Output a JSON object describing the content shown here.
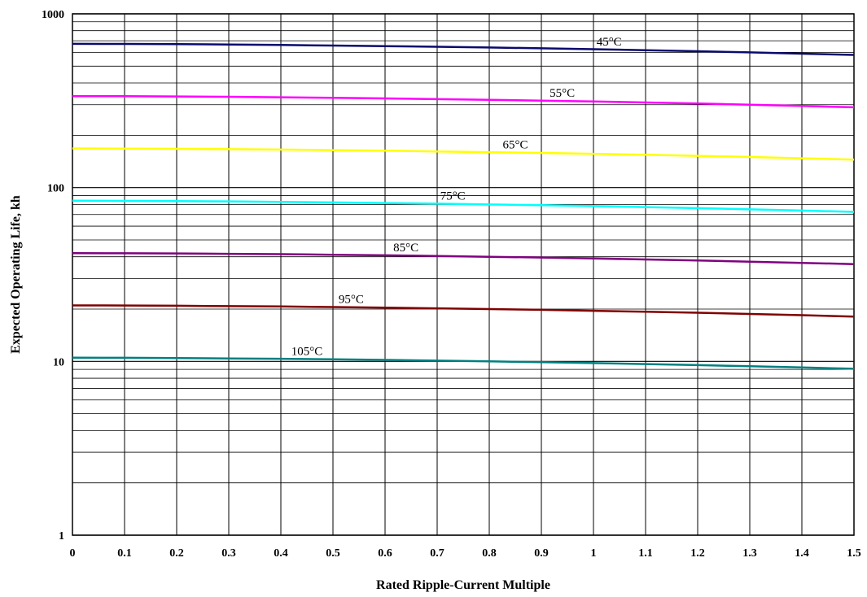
{
  "chart_data": {
    "type": "line",
    "title": "",
    "xlabel": "Rated Ripple-Current Multiple",
    "ylabel": "Expected Operating Life, kh",
    "xlim": [
      0,
      1.5
    ],
    "ylim": [
      1,
      1000
    ],
    "yscale": "log",
    "grid": true,
    "x_ticks": [
      "0",
      "0.1",
      "0.2",
      "0.3",
      "0.4",
      "0.5",
      "0.6",
      "0.7",
      "0.8",
      "0.9",
      "1",
      "1.1",
      "1.2",
      "1.3",
      "1.4",
      "1.5"
    ],
    "y_ticks": [
      {
        "value": 1,
        "label": "1"
      },
      {
        "value": 10,
        "label": "10"
      },
      {
        "value": 100,
        "label": "100"
      },
      {
        "value": 1000,
        "label": "1000"
      }
    ],
    "x": [
      0,
      0.1,
      0.2,
      0.3,
      0.4,
      0.5,
      0.6,
      0.7,
      0.8,
      0.9,
      1.0,
      1.1,
      1.2,
      1.3,
      1.4,
      1.5
    ],
    "series": [
      {
        "name": "45°C",
        "color": "#0a0a6e",
        "label_x": 1.03,
        "values": [
          672,
          671,
          669,
          666,
          662,
          657,
          652,
          646,
          640,
          633,
          626,
          618,
          609,
          600,
          590,
          580
        ]
      },
      {
        "name": "55°C",
        "color": "#ff00ff",
        "label_x": 0.94,
        "values": [
          336,
          335.5,
          334.5,
          333,
          331,
          328.5,
          326,
          323,
          320,
          316.5,
          313,
          309,
          304.5,
          300,
          295,
          290
        ]
      },
      {
        "name": "65°C",
        "color": "#ffff00",
        "label_x": 0.85,
        "values": [
          168,
          167.7,
          167.2,
          166.5,
          165.5,
          164.3,
          163,
          161.5,
          160,
          158.3,
          156.5,
          154.5,
          152.3,
          150,
          147.5,
          145
        ]
      },
      {
        "name": "75°C",
        "color": "#00ffff",
        "label_x": 0.73,
        "values": [
          84,
          83.9,
          83.6,
          83.3,
          82.8,
          82.2,
          81.5,
          80.8,
          80,
          79.2,
          78.3,
          77.3,
          76.2,
          75,
          73.8,
          72.5
        ]
      },
      {
        "name": "85°C",
        "color": "#800080",
        "label_x": 0.64,
        "values": [
          42,
          41.9,
          41.8,
          41.6,
          41.4,
          41.1,
          40.8,
          40.4,
          40,
          39.6,
          39.1,
          38.6,
          38.1,
          37.5,
          36.9,
          36.3
        ]
      },
      {
        "name": "95°C",
        "color": "#800000",
        "label_x": 0.535,
        "values": [
          21,
          20.98,
          20.9,
          20.8,
          20.7,
          20.55,
          20.4,
          20.2,
          20,
          19.8,
          19.55,
          19.3,
          19.05,
          18.75,
          18.45,
          18.1
        ]
      },
      {
        "name": "105°C",
        "color": "#008080",
        "label_x": 0.45,
        "values": [
          10.5,
          10.49,
          10.45,
          10.4,
          10.35,
          10.28,
          10.2,
          10.1,
          10,
          9.9,
          9.78,
          9.65,
          9.52,
          9.38,
          9.23,
          9.07
        ]
      }
    ]
  }
}
